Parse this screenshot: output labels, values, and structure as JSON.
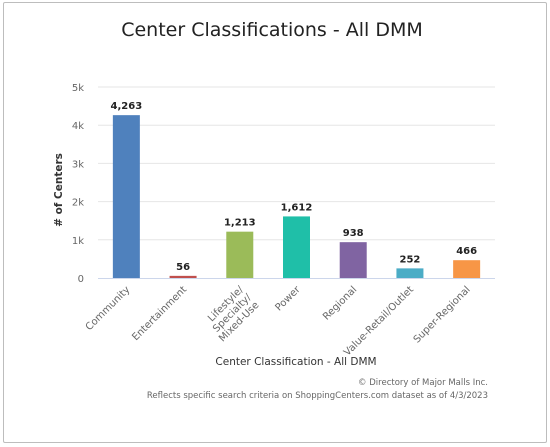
{
  "chart_data": {
    "type": "bar",
    "title": "Center Classifications - All DMM",
    "xlabel": "Center Classification - All DMM",
    "ylabel": "# of Centers",
    "categories": [
      "Community",
      "Entertainment",
      "Lifestyle/ Specialty/ Mixed-Use",
      "Power",
      "Regional",
      "Value-Retail/Outlet",
      "Super-Regional"
    ],
    "values": [
      4263,
      56,
      1213,
      1612,
      938,
      252,
      466
    ],
    "data_labels": [
      "4,263",
      "56",
      "1,213",
      "1,612",
      "938",
      "252",
      "466"
    ],
    "colors": [
      "#4f81bd",
      "#c0504d",
      "#9bbb59",
      "#1fbfa8",
      "#8064a2",
      "#4bacc6",
      "#f79646"
    ],
    "ylim": [
      0,
      5000
    ],
    "yticks": [
      0,
      1000,
      2000,
      3000,
      4000,
      5000
    ],
    "ytick_labels": [
      "0",
      "1k",
      "2k",
      "3k",
      "4k",
      "5k"
    ],
    "grid": true
  },
  "credits": {
    "line1": "© Directory of Major Malls Inc.",
    "line2": "Reflects specific search criteria on ShoppingCenters.com dataset as of 4/3/2023"
  }
}
